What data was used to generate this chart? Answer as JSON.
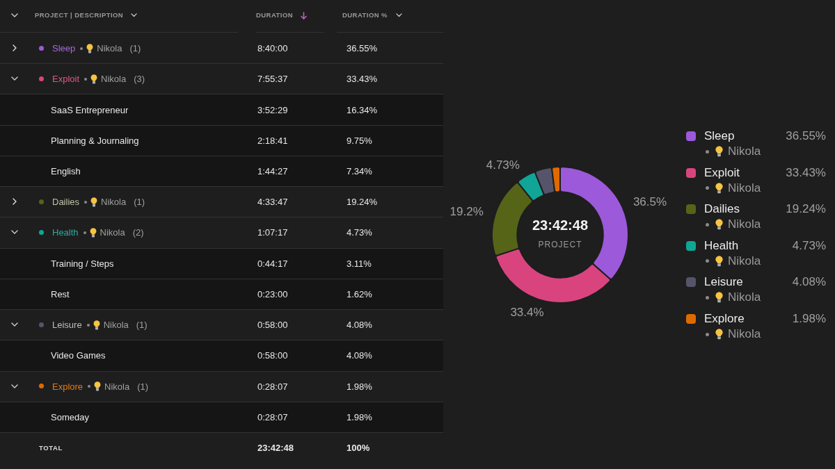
{
  "chart_data": [
    {
      "type": "other",
      "ylabel": "PROJECT | DESCRIPTION",
      "categories": [
        "Sleep",
        "Exploit",
        "SaaS Entrepreneur",
        "Planning & Journaling",
        "English",
        "Dailies",
        "Health",
        "Training / Steps",
        "Rest",
        "Leisure",
        "Video Games",
        "Explore",
        "Someday",
        "TOTAL"
      ],
      "colors": [
        "#9c59d9",
        "#d9447f",
        null,
        null,
        null,
        "#566418",
        "#10a596",
        null,
        null,
        "#55546a",
        null,
        "#e06a00",
        null,
        null
      ],
      "y2_categories": [
        "Nikola",
        "Nikola",
        null,
        null,
        null,
        "Nikola",
        "Nikola",
        null,
        null,
        "Nikola",
        null,
        "Nikola",
        null,
        null
      ],
      "series": [
        {
          "name": "DURATION",
          "values": [
            31200,
            28537,
            13949,
            8321,
            6267,
            16427,
            4037,
            2657,
            1380,
            3480,
            3480,
            1687,
            1687,
            85368
          ],
          "value_labels": [
            "8:40:00",
            "7:55:37",
            "3:52:29",
            "2:18:41",
            "1:44:27",
            "4:33:47",
            "1:07:17",
            "0:44:17",
            "0:23:00",
            "0:58:00",
            "0:58:00",
            "0:28:07",
            "0:28:07",
            "23:42:48"
          ]
        },
        {
          "name": "DURATION %",
          "values": [
            36.55,
            33.43,
            16.34,
            9.75,
            7.34,
            19.24,
            4.73,
            3.11,
            1.62,
            4.08,
            4.08,
            1.98,
            1.98,
            100
          ],
          "value_labels": [
            "36.55%",
            "33.43%",
            "16.34%",
            "9.75%",
            "7.34%",
            "19.24%",
            "4.73%",
            "3.11%",
            "1.62%",
            "4.08%",
            "4.08%",
            "1.98%",
            "1.98%",
            "100%"
          ]
        },
        {
          "values": [
            1,
            3,
            null,
            null,
            null,
            1,
            2,
            null,
            null,
            1,
            null,
            1,
            null,
            null
          ],
          "value_labels": [
            "(1)",
            "(3)",
            null,
            null,
            null,
            "(1)",
            "(2)",
            null,
            null,
            "(1)",
            null,
            "(1)",
            null,
            null
          ]
        }
      ]
    },
    {
      "type": "donut",
      "categories": [
        "Sleep",
        "Exploit",
        "Dailies",
        "Health",
        "Leisure",
        "Explore"
      ],
      "values": [
        36.55,
        33.43,
        19.24,
        4.73,
        4.08,
        1.98
      ],
      "colors": [
        "#9c59d9",
        "#d9447f",
        "#566418",
        "#10a596",
        "#55546a",
        "#e06a00"
      ],
      "value_labels": [
        "36.55%",
        "33.43%",
        "19.24%",
        "4.73%",
        "4.08%",
        "1.98%"
      ],
      "y2_categories": [
        "Nikola",
        "Nikola",
        "Nikola",
        "Nikola",
        "Nikola",
        "Nikola"
      ],
      "annotations": [
        "23:42:48",
        "PROJECT",
        {
          "text": "36.5%",
          "x": "Sleep"
        },
        {
          "text": "33.4%",
          "x": "Exploit"
        },
        {
          "text": "19.2%",
          "x": "Dailies"
        },
        {
          "text": "4.73%",
          "x": "Health"
        }
      ],
      "legend": "right"
    }
  ]
}
